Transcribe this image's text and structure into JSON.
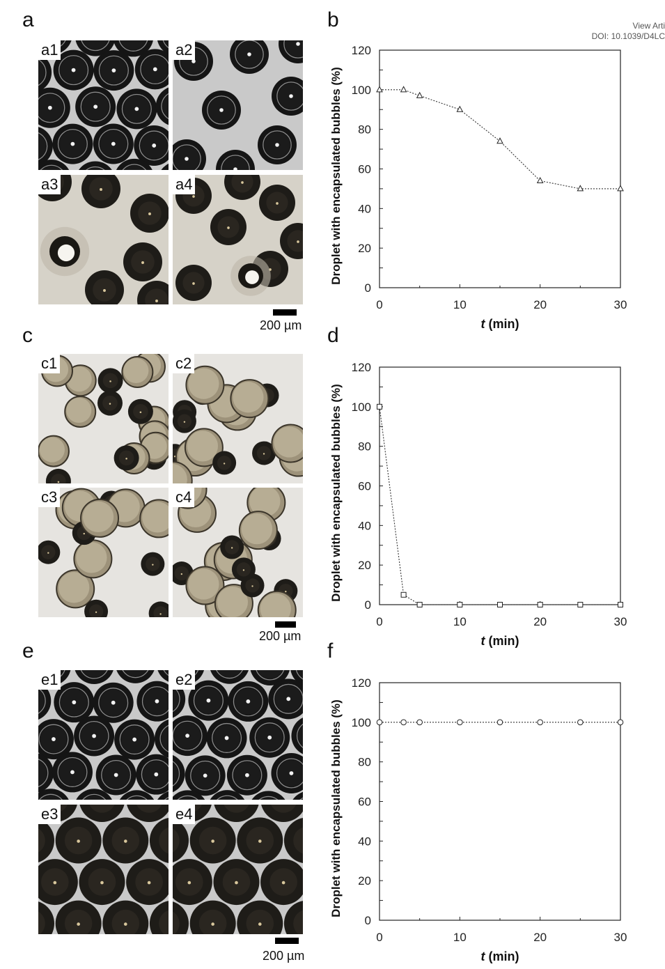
{
  "header": {
    "line1": "View Arti",
    "line2": "DOI: 10.1039/D4LC"
  },
  "panels": {
    "a": {
      "letter": "a",
      "tiles": [
        "a1",
        "a2",
        "a3",
        "a4"
      ],
      "scale": "200 µm"
    },
    "b": {
      "letter": "b"
    },
    "c": {
      "letter": "c",
      "tiles": [
        "c1",
        "c2",
        "c3",
        "c4"
      ],
      "scale": "200 µm"
    },
    "d": {
      "letter": "d"
    },
    "e": {
      "letter": "e",
      "tiles": [
        "e1",
        "e2",
        "e3",
        "e4"
      ],
      "scale": "200 µm"
    },
    "f": {
      "letter": "f"
    }
  },
  "chart_data": [
    {
      "panel": "b",
      "type": "scatter",
      "xlabel_italic": "t",
      "xlabel_rest": " (min)",
      "ylabel": "Droplet with encapsulated bubbles (%)",
      "xlim": [
        0,
        30
      ],
      "ylim": [
        0,
        120
      ],
      "xticks": [
        0,
        10,
        20,
        30
      ],
      "yticks": [
        0,
        20,
        40,
        60,
        80,
        100,
        120
      ],
      "marker": "triangle",
      "line": "dotted",
      "grid": false,
      "x": [
        0,
        3,
        5,
        10,
        15,
        20,
        25,
        30
      ],
      "y": [
        100,
        100,
        97,
        90,
        74,
        54,
        50,
        50
      ]
    },
    {
      "panel": "d",
      "type": "scatter",
      "xlabel_italic": "t",
      "xlabel_rest": " (min)",
      "ylabel": "Droplet with encapsulated bubbles (%)",
      "xlim": [
        0,
        30
      ],
      "ylim": [
        0,
        120
      ],
      "xticks": [
        0,
        10,
        20,
        30
      ],
      "yticks": [
        0,
        20,
        40,
        60,
        80,
        100,
        120
      ],
      "marker": "square",
      "line": "dotted",
      "grid": false,
      "x": [
        0,
        3,
        5,
        10,
        15,
        20,
        25,
        30
      ],
      "y": [
        100,
        5,
        0,
        0,
        0,
        0,
        0,
        0
      ]
    },
    {
      "panel": "f",
      "type": "scatter",
      "xlabel_italic": "t",
      "xlabel_rest": " (min)",
      "ylabel": "Droplet with encapsulated bubbles (%)",
      "xlim": [
        0,
        30
      ],
      "ylim": [
        0,
        120
      ],
      "xticks": [
        0,
        10,
        20,
        30
      ],
      "yticks": [
        0,
        20,
        40,
        60,
        80,
        100,
        120
      ],
      "marker": "circle",
      "line": "dotted",
      "grid": false,
      "x": [
        0,
        3,
        5,
        10,
        15,
        20,
        25,
        30
      ],
      "y": [
        100,
        100,
        100,
        100,
        100,
        100,
        100,
        100
      ]
    }
  ]
}
